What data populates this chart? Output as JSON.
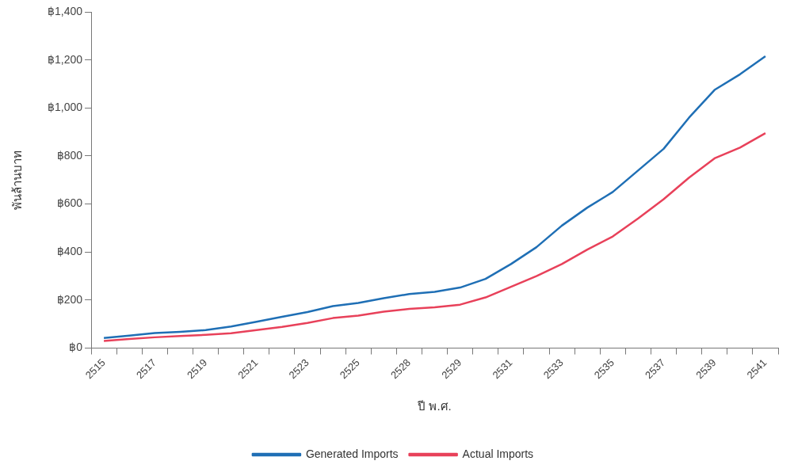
{
  "chart_data": {
    "type": "line",
    "xlabel": "ปี พ.ศ.",
    "ylabel": "พันล้านบาท",
    "categories": [
      "2515",
      null,
      "2517",
      null,
      "2519",
      null,
      "2521",
      null,
      "2523",
      null,
      "2525",
      null,
      "2528",
      null,
      "2529",
      null,
      "2531",
      null,
      "2533",
      null,
      "2535",
      null,
      "2537",
      null,
      "2539",
      null,
      "2541"
    ],
    "series": [
      {
        "name": "Generated Imports",
        "color": "#1f6fb5",
        "values": [
          42,
          52,
          63,
          68,
          75,
          90,
          110,
          130,
          150,
          175,
          188,
          208,
          225,
          234,
          252,
          288,
          350,
          420,
          510,
          585,
          650,
          740,
          830,
          960,
          1075,
          1140,
          1215
        ]
      },
      {
        "name": "Actual Imports",
        "color": "#e8415a",
        "values": [
          30,
          38,
          45,
          50,
          55,
          62,
          75,
          88,
          105,
          125,
          135,
          152,
          163,
          170,
          181,
          211,
          255,
          300,
          350,
          410,
          465,
          540,
          620,
          710,
          790,
          835,
          895
        ]
      }
    ],
    "ylim": [
      0,
      1400
    ],
    "yticks": [
      {
        "value": 0,
        "label": "฿0"
      },
      {
        "value": 200,
        "label": "฿200"
      },
      {
        "value": 400,
        "label": "฿400"
      },
      {
        "value": 600,
        "label": "฿600"
      },
      {
        "value": 800,
        "label": "฿800"
      },
      {
        "value": 1000,
        "label": "฿1,000"
      },
      {
        "value": 1200,
        "label": "฿1,200"
      },
      {
        "value": 1400,
        "label": "฿1,400"
      }
    ],
    "grid": false,
    "legend": "bottom",
    "marker": "none",
    "line_style": "solid"
  }
}
